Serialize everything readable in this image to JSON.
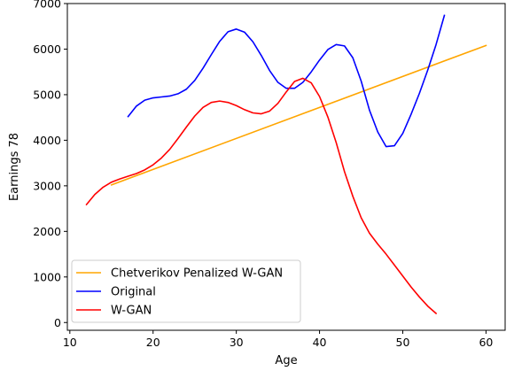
{
  "chart_data": {
    "type": "line",
    "title": "",
    "xlabel": "Age",
    "ylabel": "Earnings 78",
    "xlim": [
      9.7,
      62.3
    ],
    "ylim": [
      -170,
      7000
    ],
    "xticks": [
      10,
      20,
      30,
      40,
      50,
      60
    ],
    "yticks": [
      0,
      1000,
      2000,
      3000,
      4000,
      5000,
      6000,
      7000
    ],
    "grid": false,
    "legend_position": "lower-left",
    "series": [
      {
        "name": "Chetverikov Penalized W-GAN",
        "color": "#ffa500",
        "x": [
          15,
          60
        ],
        "y": [
          3020,
          6080
        ]
      },
      {
        "name": "Original",
        "color": "#0000ff",
        "x": [
          17,
          18,
          19,
          20,
          21,
          22,
          23,
          24,
          25,
          26,
          27,
          28,
          29,
          30,
          31,
          32,
          33,
          34,
          35,
          36,
          37,
          38,
          39,
          40,
          41,
          42,
          43,
          44,
          45,
          46,
          47,
          48,
          49,
          50,
          51,
          52,
          53,
          54,
          55
        ],
        "y": [
          4520,
          4750,
          4880,
          4930,
          4950,
          4970,
          5020,
          5120,
          5310,
          5580,
          5880,
          6170,
          6380,
          6440,
          6370,
          6160,
          5860,
          5530,
          5270,
          5140,
          5140,
          5270,
          5500,
          5760,
          5990,
          6100,
          6070,
          5810,
          5300,
          4660,
          4180,
          3860,
          3880,
          4150,
          4570,
          5030,
          5540,
          6100,
          6740
        ]
      },
      {
        "name": "W-GAN",
        "color": "#ff0000",
        "x": [
          12,
          13,
          14,
          15,
          16,
          17,
          18,
          19,
          20,
          21,
          22,
          23,
          24,
          25,
          26,
          27,
          28,
          29,
          30,
          31,
          32,
          33,
          34,
          35,
          36,
          37,
          38,
          39,
          40,
          41,
          42,
          43,
          44,
          45,
          46,
          47,
          48,
          49,
          50,
          51,
          52,
          53,
          54
        ],
        "y": [
          2590,
          2810,
          2970,
          3080,
          3150,
          3210,
          3270,
          3350,
          3460,
          3610,
          3800,
          4040,
          4290,
          4530,
          4720,
          4830,
          4860,
          4830,
          4760,
          4670,
          4600,
          4580,
          4640,
          4810,
          5060,
          5290,
          5360,
          5260,
          4960,
          4510,
          3950,
          3310,
          2770,
          2300,
          1960,
          1720,
          1500,
          1260,
          1020,
          780,
          560,
          360,
          200
        ]
      }
    ]
  }
}
